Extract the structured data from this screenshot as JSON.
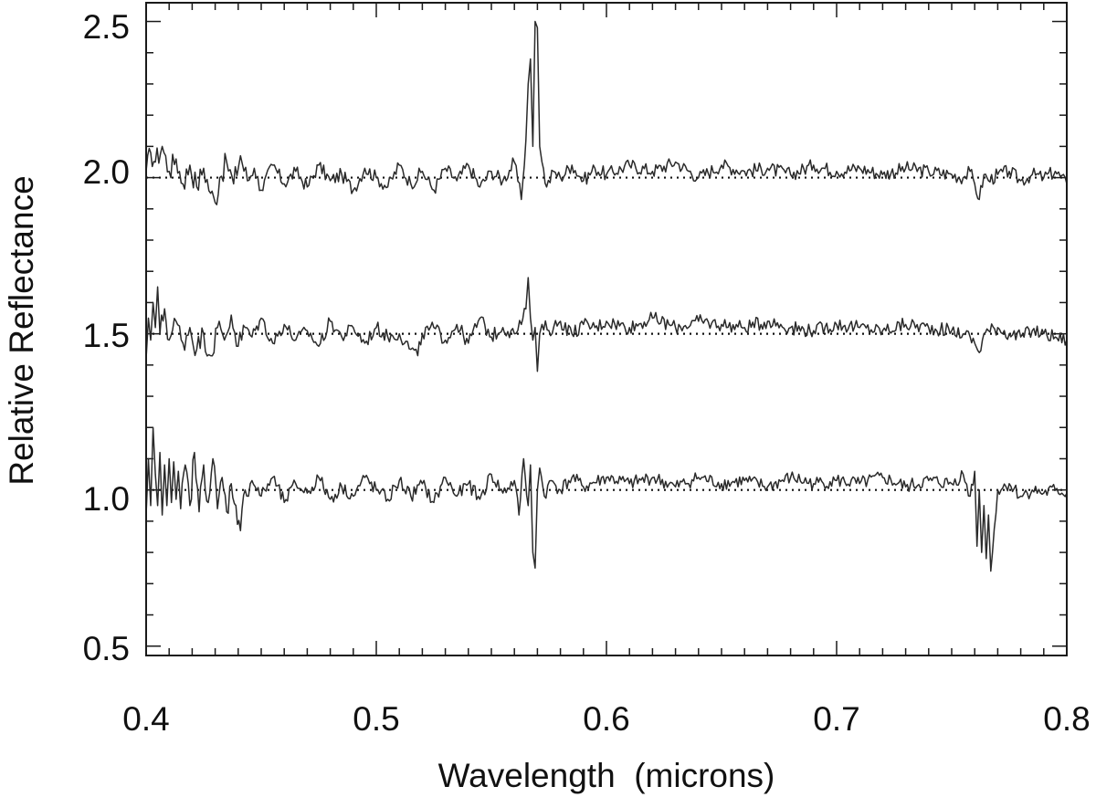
{
  "chart_data": {
    "type": "line",
    "title": "",
    "xlabel": "Wavelength  (microns)",
    "ylabel": "Relative Reflectance",
    "xlim": [
      0.4,
      0.8
    ],
    "ylim": [
      0.47,
      2.56
    ],
    "x_ticks": [
      "0.4",
      "0.5",
      "0.6",
      "0.7",
      "0.8"
    ],
    "y_ticks": [
      "0.5",
      "1.0",
      "1.5",
      "2.0",
      "2.5"
    ],
    "x_minor_step": 0.01,
    "y_minor_step": 0.1,
    "legend": "none",
    "grid": false,
    "reference_lines": [
      1.0,
      1.5,
      2.0
    ],
    "series": [
      {
        "baseline": 2.0,
        "x": [
          0.4,
          0.402,
          0.404,
          0.407,
          0.41,
          0.413,
          0.416,
          0.419,
          0.422,
          0.425,
          0.428,
          0.43,
          0.432,
          0.435,
          0.438,
          0.441,
          0.444,
          0.447,
          0.45,
          0.455,
          0.46,
          0.465,
          0.47,
          0.475,
          0.48,
          0.485,
          0.49,
          0.495,
          0.5,
          0.505,
          0.51,
          0.515,
          0.52,
          0.525,
          0.53,
          0.535,
          0.54,
          0.545,
          0.55,
          0.555,
          0.56,
          0.563,
          0.565,
          0.566,
          0.567,
          0.568,
          0.569,
          0.57,
          0.571,
          0.572,
          0.574,
          0.577,
          0.58,
          0.585,
          0.59,
          0.595,
          0.6,
          0.61,
          0.62,
          0.63,
          0.64,
          0.65,
          0.66,
          0.67,
          0.68,
          0.69,
          0.7,
          0.71,
          0.72,
          0.73,
          0.74,
          0.75,
          0.755,
          0.758,
          0.76,
          0.762,
          0.764,
          0.766,
          0.77,
          0.775,
          0.78,
          0.785,
          0.79,
          0.795,
          0.8
        ],
        "y": [
          2.02,
          2.08,
          2.05,
          2.1,
          2.02,
          2.06,
          1.98,
          2.04,
          1.97,
          2.03,
          1.95,
          1.92,
          2.0,
          2.05,
          1.98,
          2.07,
          1.99,
          2.03,
          1.96,
          2.04,
          1.98,
          2.02,
          1.97,
          2.04,
          1.99,
          2.01,
          1.96,
          2.03,
          2.0,
          1.97,
          2.04,
          1.98,
          2.02,
          1.96,
          2.03,
          1.99,
          2.04,
          1.97,
          2.02,
          1.99,
          2.05,
          1.93,
          2.12,
          2.3,
          2.38,
          2.1,
          2.5,
          2.48,
          2.1,
          2.05,
          1.97,
          2.02,
          2.0,
          2.04,
          1.99,
          2.03,
          2.01,
          2.04,
          2.02,
          2.05,
          2.0,
          2.04,
          2.02,
          2.03,
          2.01,
          2.04,
          2.02,
          2.03,
          2.01,
          2.03,
          2.02,
          2.01,
          2.0,
          2.02,
          1.98,
          1.93,
          2.01,
          1.99,
          2.01,
          2.02,
          1.99,
          2.01,
          2.0,
          2.02,
          1.98
        ]
      },
      {
        "baseline": 1.5,
        "x": [
          0.4,
          0.401,
          0.402,
          0.403,
          0.404,
          0.405,
          0.406,
          0.408,
          0.41,
          0.413,
          0.416,
          0.419,
          0.422,
          0.425,
          0.428,
          0.431,
          0.434,
          0.437,
          0.44,
          0.443,
          0.446,
          0.45,
          0.455,
          0.46,
          0.465,
          0.47,
          0.475,
          0.48,
          0.485,
          0.49,
          0.495,
          0.5,
          0.505,
          0.51,
          0.515,
          0.518,
          0.52,
          0.525,
          0.53,
          0.535,
          0.54,
          0.545,
          0.55,
          0.555,
          0.56,
          0.563,
          0.565,
          0.566,
          0.567,
          0.568,
          0.569,
          0.57,
          0.571,
          0.572,
          0.575,
          0.58,
          0.585,
          0.59,
          0.595,
          0.6,
          0.61,
          0.62,
          0.63,
          0.64,
          0.65,
          0.66,
          0.67,
          0.68,
          0.69,
          0.7,
          0.71,
          0.72,
          0.73,
          0.74,
          0.75,
          0.755,
          0.758,
          0.76,
          0.762,
          0.764,
          0.766,
          0.77,
          0.775,
          0.78,
          0.785,
          0.79,
          0.795,
          0.8
        ],
        "y": [
          1.42,
          1.55,
          1.48,
          1.6,
          1.52,
          1.65,
          1.5,
          1.58,
          1.48,
          1.54,
          1.47,
          1.52,
          1.45,
          1.5,
          1.43,
          1.52,
          1.48,
          1.56,
          1.46,
          1.52,
          1.49,
          1.55,
          1.47,
          1.53,
          1.48,
          1.51,
          1.46,
          1.54,
          1.49,
          1.52,
          1.47,
          1.52,
          1.49,
          1.5,
          1.45,
          1.43,
          1.5,
          1.52,
          1.48,
          1.53,
          1.47,
          1.55,
          1.49,
          1.52,
          1.5,
          1.53,
          1.58,
          1.68,
          1.55,
          1.48,
          1.52,
          1.38,
          1.5,
          1.53,
          1.51,
          1.54,
          1.5,
          1.53,
          1.52,
          1.54,
          1.52,
          1.55,
          1.52,
          1.54,
          1.53,
          1.52,
          1.54,
          1.52,
          1.51,
          1.53,
          1.52,
          1.51,
          1.53,
          1.52,
          1.51,
          1.5,
          1.49,
          1.47,
          1.44,
          1.5,
          1.51,
          1.52,
          1.5,
          1.49,
          1.51,
          1.5,
          1.49,
          1.48
        ]
      },
      {
        "baseline": 1.0,
        "x": [
          0.4,
          0.401,
          0.402,
          0.403,
          0.404,
          0.405,
          0.406,
          0.407,
          0.408,
          0.409,
          0.41,
          0.411,
          0.412,
          0.413,
          0.414,
          0.415,
          0.417,
          0.419,
          0.421,
          0.423,
          0.425,
          0.427,
          0.429,
          0.431,
          0.433,
          0.435,
          0.437,
          0.439,
          0.441,
          0.443,
          0.446,
          0.45,
          0.455,
          0.46,
          0.465,
          0.47,
          0.475,
          0.48,
          0.485,
          0.49,
          0.495,
          0.5,
          0.505,
          0.51,
          0.515,
          0.52,
          0.525,
          0.53,
          0.535,
          0.54,
          0.545,
          0.55,
          0.555,
          0.56,
          0.562,
          0.564,
          0.566,
          0.567,
          0.568,
          0.569,
          0.57,
          0.571,
          0.573,
          0.576,
          0.58,
          0.585,
          0.59,
          0.6,
          0.61,
          0.62,
          0.63,
          0.64,
          0.65,
          0.66,
          0.67,
          0.68,
          0.69,
          0.7,
          0.71,
          0.72,
          0.73,
          0.74,
          0.75,
          0.755,
          0.758,
          0.76,
          0.761,
          0.762,
          0.763,
          0.764,
          0.765,
          0.766,
          0.767,
          0.77,
          0.775,
          0.78,
          0.785,
          0.79,
          0.795,
          0.8
        ],
        "y": [
          0.92,
          1.1,
          0.95,
          1.2,
          1.05,
          0.95,
          1.12,
          0.92,
          1.08,
          0.95,
          1.1,
          0.96,
          1.09,
          0.97,
          1.06,
          0.94,
          1.08,
          0.95,
          1.12,
          0.93,
          1.08,
          0.96,
          1.1,
          0.94,
          1.04,
          0.93,
          1.02,
          0.95,
          0.87,
          1.0,
          1.03,
          0.98,
          1.04,
          0.96,
          1.02,
          0.99,
          1.04,
          0.97,
          1.01,
          0.98,
          1.04,
          1.0,
          0.97,
          1.03,
          0.98,
          1.02,
          0.96,
          1.04,
          0.98,
          1.02,
          0.97,
          1.05,
          0.99,
          1.03,
          0.92,
          1.1,
          0.95,
          1.08,
          0.8,
          0.75,
          1.0,
          1.07,
          0.98,
          1.03,
          1.0,
          1.04,
          1.01,
          1.04,
          1.02,
          1.04,
          1.01,
          1.04,
          1.02,
          1.03,
          1.01,
          1.04,
          1.02,
          1.03,
          1.02,
          1.04,
          1.01,
          1.03,
          1.02,
          1.05,
          0.98,
          1.06,
          0.82,
          1.0,
          0.8,
          0.95,
          0.78,
          0.92,
          0.74,
          1.0,
          1.02,
          0.98,
          1.0,
          0.99,
          1.0,
          0.99
        ]
      }
    ]
  }
}
